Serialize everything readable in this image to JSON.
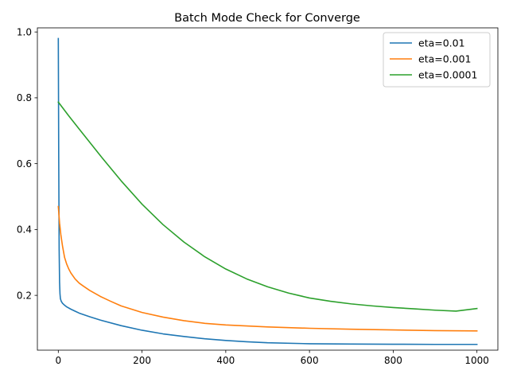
{
  "chart_data": {
    "type": "line",
    "title": "Batch Mode Check for Converge",
    "xlabel": "",
    "ylabel": "",
    "xlim": [
      -50,
      1050
    ],
    "ylim": [
      0.0335,
      1.0125
    ],
    "xticks": [
      0,
      200,
      400,
      600,
      800,
      1000
    ],
    "yticks": [
      0.2,
      0.4,
      0.6,
      0.8,
      1.0
    ],
    "xtick_labels": [
      "0",
      "200",
      "400",
      "600",
      "800",
      "1000"
    ],
    "ytick_labels": [
      "0.2",
      "0.4",
      "0.6",
      "0.8",
      "1.0"
    ],
    "grid": false,
    "legend_position": "top-right",
    "series": [
      {
        "name": "eta=0.01",
        "color": "#1f77b4",
        "x": [
          0,
          1,
          2,
          3,
          4,
          5,
          7,
          10,
          15,
          20,
          30,
          40,
          50,
          75,
          100,
          150,
          200,
          250,
          300,
          350,
          400,
          450,
          500,
          600,
          700,
          800,
          900,
          1000
        ],
        "y": [
          0.98,
          0.62,
          0.34,
          0.24,
          0.205,
          0.19,
          0.182,
          0.176,
          0.17,
          0.165,
          0.158,
          0.152,
          0.146,
          0.135,
          0.125,
          0.108,
          0.094,
          0.083,
          0.075,
          0.068,
          0.063,
          0.059,
          0.056,
          0.053,
          0.052,
          0.0515,
          0.051,
          0.051
        ]
      },
      {
        "name": "eta=0.001",
        "color": "#ff7f0e",
        "x": [
          0,
          3,
          6,
          10,
          15,
          20,
          25,
          30,
          40,
          50,
          60,
          75,
          100,
          125,
          150,
          175,
          200,
          250,
          300,
          350,
          400,
          500,
          600,
          700,
          800,
          900,
          1000
        ],
        "y": [
          0.47,
          0.42,
          0.385,
          0.35,
          0.315,
          0.295,
          0.28,
          0.268,
          0.25,
          0.237,
          0.228,
          0.215,
          0.197,
          0.182,
          0.168,
          0.158,
          0.148,
          0.134,
          0.123,
          0.115,
          0.11,
          0.104,
          0.1,
          0.097,
          0.095,
          0.093,
          0.092
        ]
      },
      {
        "name": "eta=0.0001",
        "color": "#2ca02c",
        "x": [
          0,
          25,
          50,
          75,
          100,
          150,
          200,
          250,
          300,
          350,
          400,
          450,
          500,
          550,
          600,
          650,
          700,
          750,
          800,
          850,
          900,
          950,
          1000
        ],
        "y": [
          0.787,
          0.745,
          0.705,
          0.665,
          0.625,
          0.548,
          0.477,
          0.415,
          0.362,
          0.317,
          0.28,
          0.25,
          0.226,
          0.207,
          0.192,
          0.182,
          0.174,
          0.168,
          0.163,
          0.159,
          0.155,
          0.152,
          0.16
        ]
      }
    ]
  }
}
